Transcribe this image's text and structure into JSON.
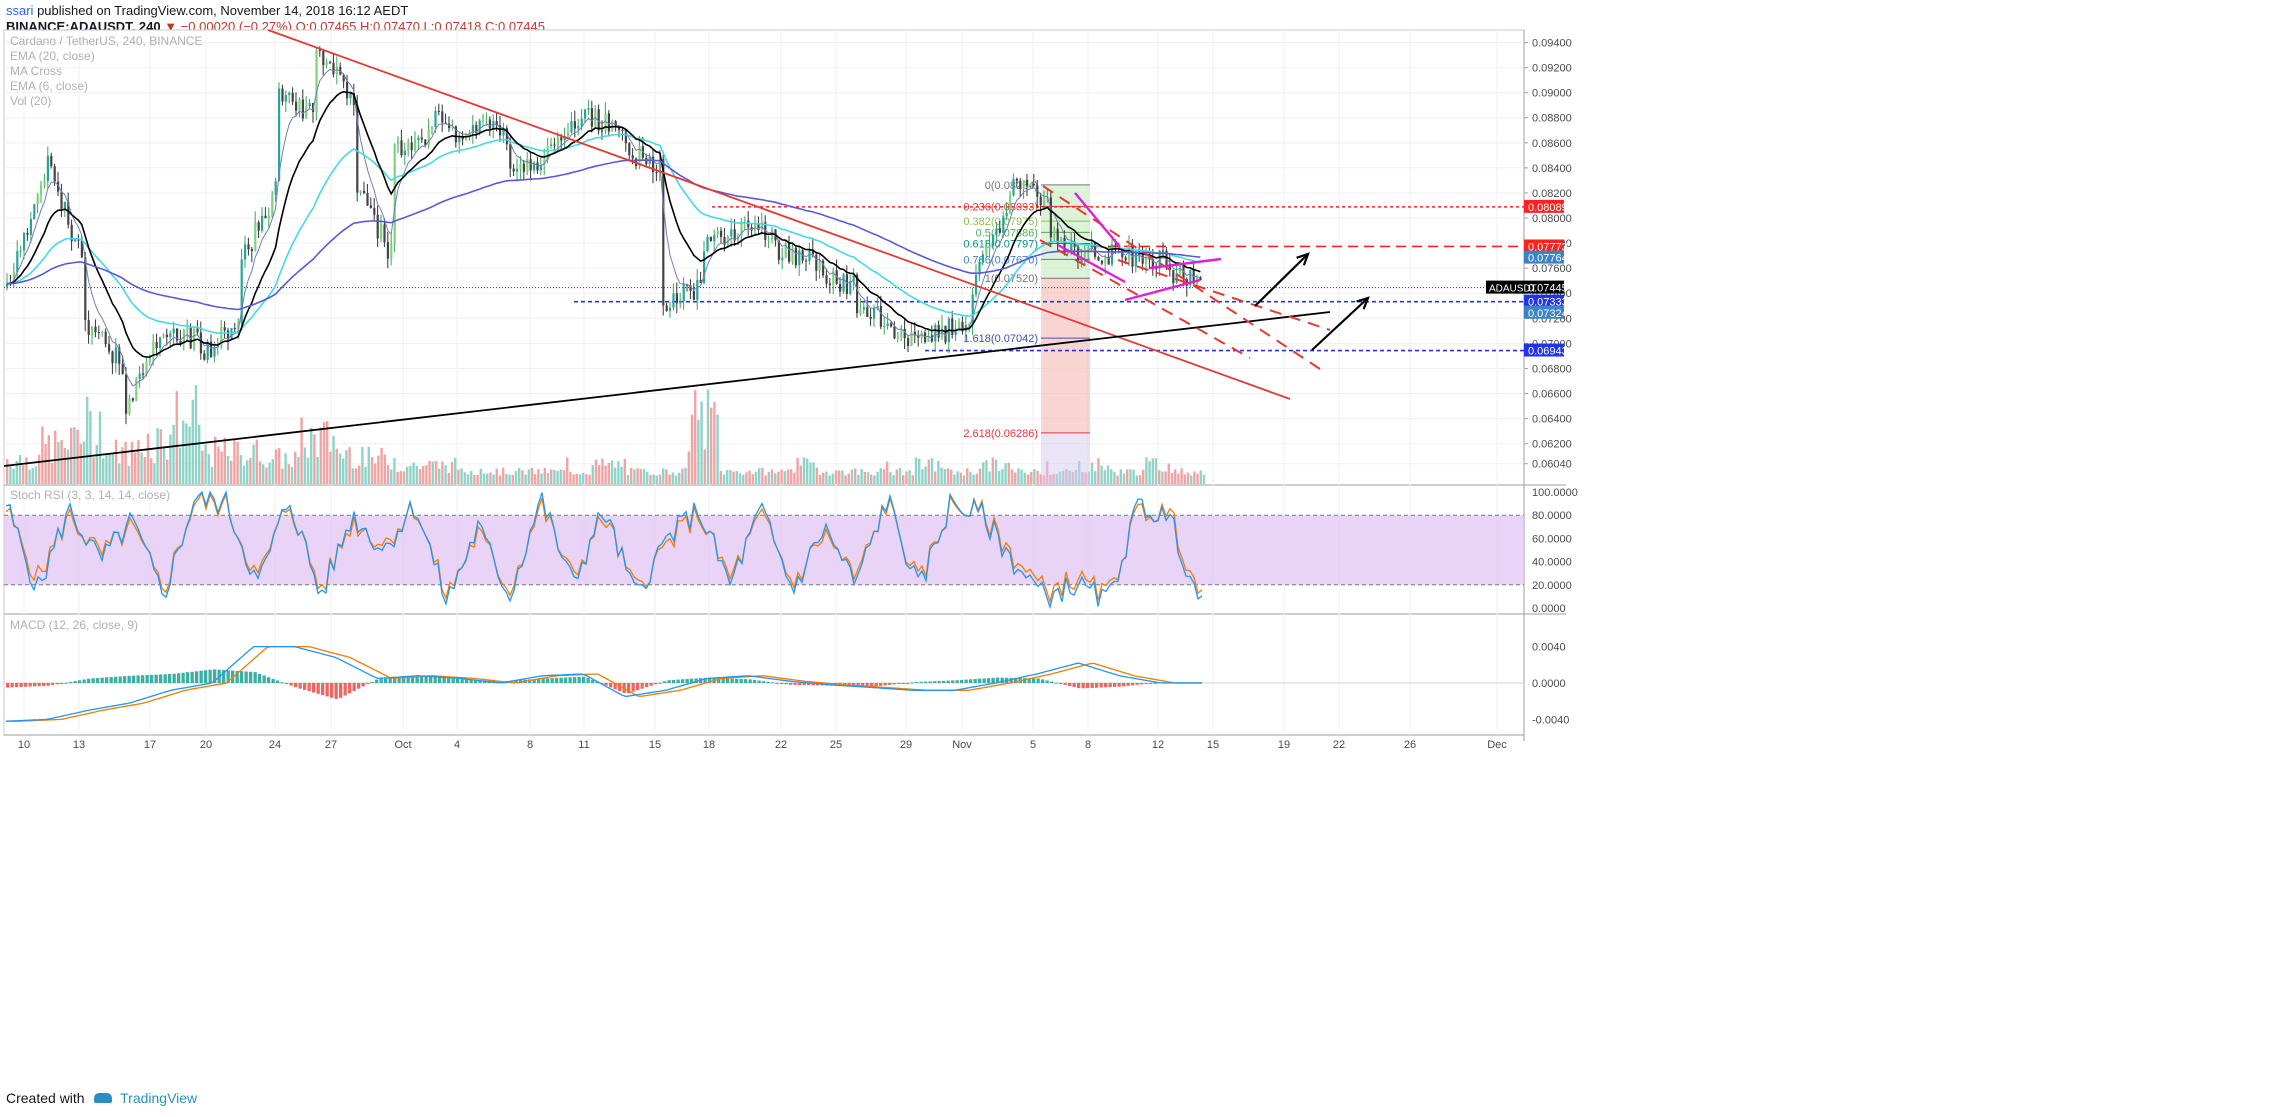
{
  "header": {
    "author": "ssari",
    "published": "published on TradingView.com, November 14, 2018 16:12 AEDT",
    "symbol": "BINANCE:ADAUSDT, 240",
    "change": "▼ −0.00020 (−0.27%)",
    "ohlc": "O:0.07465 H:0.07470 L:0.07418 C:0.07445"
  },
  "footer": {
    "created_with": "Created with",
    "brand": "TradingView"
  },
  "legend": [
    "Cardano / TetherUS, 240, BINANCE",
    "EMA (20, close)",
    "MA Cross",
    "EMA (6, close)",
    "Vol (20)"
  ],
  "colors": {
    "bull": "#26a69a",
    "bull_light": "#7fd17f",
    "bear": "#ef5350",
    "ema_black": "#000000",
    "ema_cyan": "#43d9e6",
    "ma_blue": "#5a5ad6",
    "trend_red": "#e53935",
    "support_black": "#000000",
    "wedge": "#e020d8",
    "stoch_band": "#e1c6f5",
    "level_red": "#ff2020",
    "level_blue": "#2233ee"
  },
  "chart_data": [
    {
      "type": "candlestick",
      "title": "Cardano / TetherUS, 240, BINANCE",
      "x_ticks": [
        "10",
        "13",
        "17",
        "20",
        "24",
        "27",
        "Oct",
        "4",
        "8",
        "11",
        "15",
        "18",
        "22",
        "25",
        "29",
        "Nov",
        "5",
        "8",
        "12",
        "15",
        "19",
        "22",
        "26",
        "Dec"
      ],
      "y_ticks": [
        0.0604,
        0.062,
        0.064,
        0.066,
        0.068,
        0.07,
        0.072,
        0.074,
        0.076,
        0.078,
        0.08,
        0.082,
        0.084,
        0.086,
        0.088,
        0.09,
        0.092,
        0.094
      ],
      "ylim": [
        0.0595,
        0.095
      ],
      "price_path": [
        [
          0.0745,
          0.083
        ],
        [
          0.085,
          0.076
        ],
        [
          0.0718,
          0.0683
        ],
        [
          0.064,
          0.071
        ],
        [
          0.0712,
          0.0702
        ],
        [
          0.0687,
          0.072
        ],
        [
          0.076,
          0.0824
        ],
        [
          0.0905,
          0.088
        ],
        [
          0.0938,
          0.0895
        ],
        [
          0.083,
          0.0768
        ],
        [
          0.0856,
          0.0868
        ],
        [
          0.088,
          0.0862
        ],
        [
          0.0875,
          0.0865
        ],
        [
          0.0845,
          0.084
        ],
        [
          0.086,
          0.0878
        ],
        [
          0.088,
          0.0875
        ],
        [
          0.0855,
          0.084
        ],
        [
          0.073,
          0.0745
        ],
        [
          0.0775,
          0.079
        ],
        [
          0.08,
          0.078
        ],
        [
          0.0775,
          0.0765
        ],
        [
          0.0758,
          0.0745
        ],
        [
          0.073,
          0.0715
        ],
        [
          0.0706,
          0.07
        ],
        [
          0.0705,
          0.072
        ],
        [
          0.0745,
          0.081
        ],
        [
          0.0826,
          0.0815
        ],
        [
          0.0785,
          0.0768
        ],
        [
          0.0775,
          0.0768
        ],
        [
          0.077,
          0.0765
        ],
        [
          0.076,
          0.0745
        ]
      ],
      "volume": [
        3,
        5,
        8,
        4,
        6,
        9,
        4,
        4,
        3,
        6,
        4,
        3,
        2,
        2,
        1,
        1,
        1,
        1,
        2,
        1,
        1,
        9,
        1,
        1,
        2,
        1,
        1,
        1,
        2,
        1,
        2,
        1,
        1,
        2,
        1,
        2,
        1
      ],
      "last_price_label": "ADAUSDT",
      "right_axis_labels": [
        {
          "value": 0.08089,
          "text": "0.08089",
          "color": "#ff2020"
        },
        {
          "value": 0.07773,
          "text": "0.07773",
          "color": "#ff2020"
        },
        {
          "value": 0.07764,
          "text": "0.07764",
          "color": "#3a84c4"
        },
        {
          "value": 0.07445,
          "text": "0.07445",
          "color": "#000000"
        },
        {
          "value": 0.07333,
          "text": "0.07333",
          "color": "#2233ee"
        },
        {
          "value": 0.07324,
          "text": "0.07324",
          "color": "#3a84c4"
        },
        {
          "value": 0.06943,
          "text": "0.06943",
          "color": "#2233ee"
        }
      ],
      "fib_levels": [
        {
          "label": "0(0.08264)",
          "value": 0.08264,
          "color": "#777777"
        },
        {
          "label": "0.236(0.08093)",
          "value": 0.08093,
          "color": "#e53935"
        },
        {
          "label": "0.382(0.07975)",
          "value": 0.07975,
          "color": "#8bc34a"
        },
        {
          "label": "0.5(0.07886)",
          "value": 0.07886,
          "color": "#4caf50"
        },
        {
          "label": "0.618(0.07797)",
          "value": 0.07797,
          "color": "#009688"
        },
        {
          "label": "0.786(0.07670)",
          "value": 0.0767,
          "color": "#3a84c4"
        },
        {
          "label": "1(0.07520)",
          "value": 0.0752,
          "color": "#777777"
        },
        {
          "label": "1.618(0.07042)",
          "value": 0.07042,
          "color": "#3f51b5"
        },
        {
          "label": "2.618(0.06286)",
          "value": 0.06286,
          "color": "#e53935"
        }
      ]
    },
    {
      "type": "line",
      "title": "Stoch RSI (3, 3, 14, 14, close)",
      "y_ticks": [
        "100.0000",
        "80.0000",
        "60.0000",
        "40.0000",
        "20.0000",
        "0.0000"
      ],
      "ylim": [
        0,
        100
      ],
      "band": [
        20,
        80
      ],
      "k_path": [
        90,
        15,
        85,
        40,
        75,
        10,
        95,
        90,
        20,
        95,
        10,
        80,
        50,
        90,
        5,
        70,
        10,
        95,
        20,
        85,
        10,
        60,
        85,
        20,
        85,
        15,
        70,
        20,
        95,
        15,
        90,
        80,
        40,
        10,
        20,
        5,
        90,
        75,
        0
      ],
      "d_path": [
        85,
        25,
        80,
        45,
        70,
        15,
        92,
        88,
        25,
        92,
        15,
        75,
        55,
        88,
        10,
        65,
        15,
        90,
        25,
        80,
        15,
        55,
        82,
        25,
        80,
        20,
        65,
        25,
        92,
        20,
        88,
        82,
        45,
        15,
        25,
        10,
        85,
        80,
        5
      ]
    },
    {
      "type": "bar",
      "title": "MACD (12, 26, close, 9)",
      "y_ticks": [
        "0.0040",
        "0.0000",
        "-0.0040"
      ],
      "ylim": [
        -0.0055,
        0.0055
      ],
      "macd_path": [
        -0.0042,
        -0.004,
        -0.003,
        -0.0022,
        -0.0008,
        0.0,
        0.004,
        0.004,
        0.0028,
        0.0005,
        0.0008,
        0.0005,
        0.0,
        0.0008,
        0.001,
        -0.0015,
        -0.0008,
        0.0005,
        0.0008,
        0.0002,
        -0.0002,
        -0.0005,
        -0.0008,
        -0.0008,
        0.0,
        0.001,
        0.0022,
        0.0008,
        0.0,
        0.0
      ],
      "histogram": [
        -0.0005,
        -0.0003,
        0.0005,
        0.0008,
        0.001,
        0.0015,
        0.0012,
        -0.0005,
        -0.0018,
        0.0005,
        0.0008,
        0.0004,
        0.0002,
        0.0005,
        0.0007,
        -0.0012,
        0.0003,
        0.0006,
        0.0004,
        -0.0002,
        -0.0003,
        -0.0004,
        0.0001,
        0.0003,
        0.0006,
        0.0005,
        -0.0006,
        -0.0004,
        0.0001,
        0.0001
      ]
    }
  ]
}
